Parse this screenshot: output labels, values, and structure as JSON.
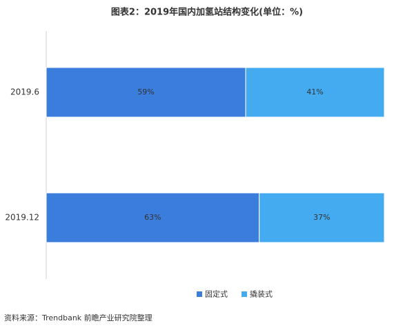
{
  "chart_data": {
    "type": "stacked_bar_horizontal",
    "title": "图表2：2019年国内加氢站结构变化(单位：%)",
    "categories": [
      "2019.6",
      "2019.12"
    ],
    "series": [
      {
        "name": "固定式",
        "color": "#3b7ddd",
        "values": [
          59,
          63
        ],
        "value_labels": [
          "59%",
          "63%"
        ]
      },
      {
        "name": "撬装式",
        "color": "#45abf0",
        "values": [
          41,
          37
        ],
        "value_labels": [
          "41%",
          "37%"
        ]
      }
    ],
    "xlim": [
      0,
      100
    ],
    "source": "资料来源：Trendbank 前瞻产业研究院整理"
  }
}
